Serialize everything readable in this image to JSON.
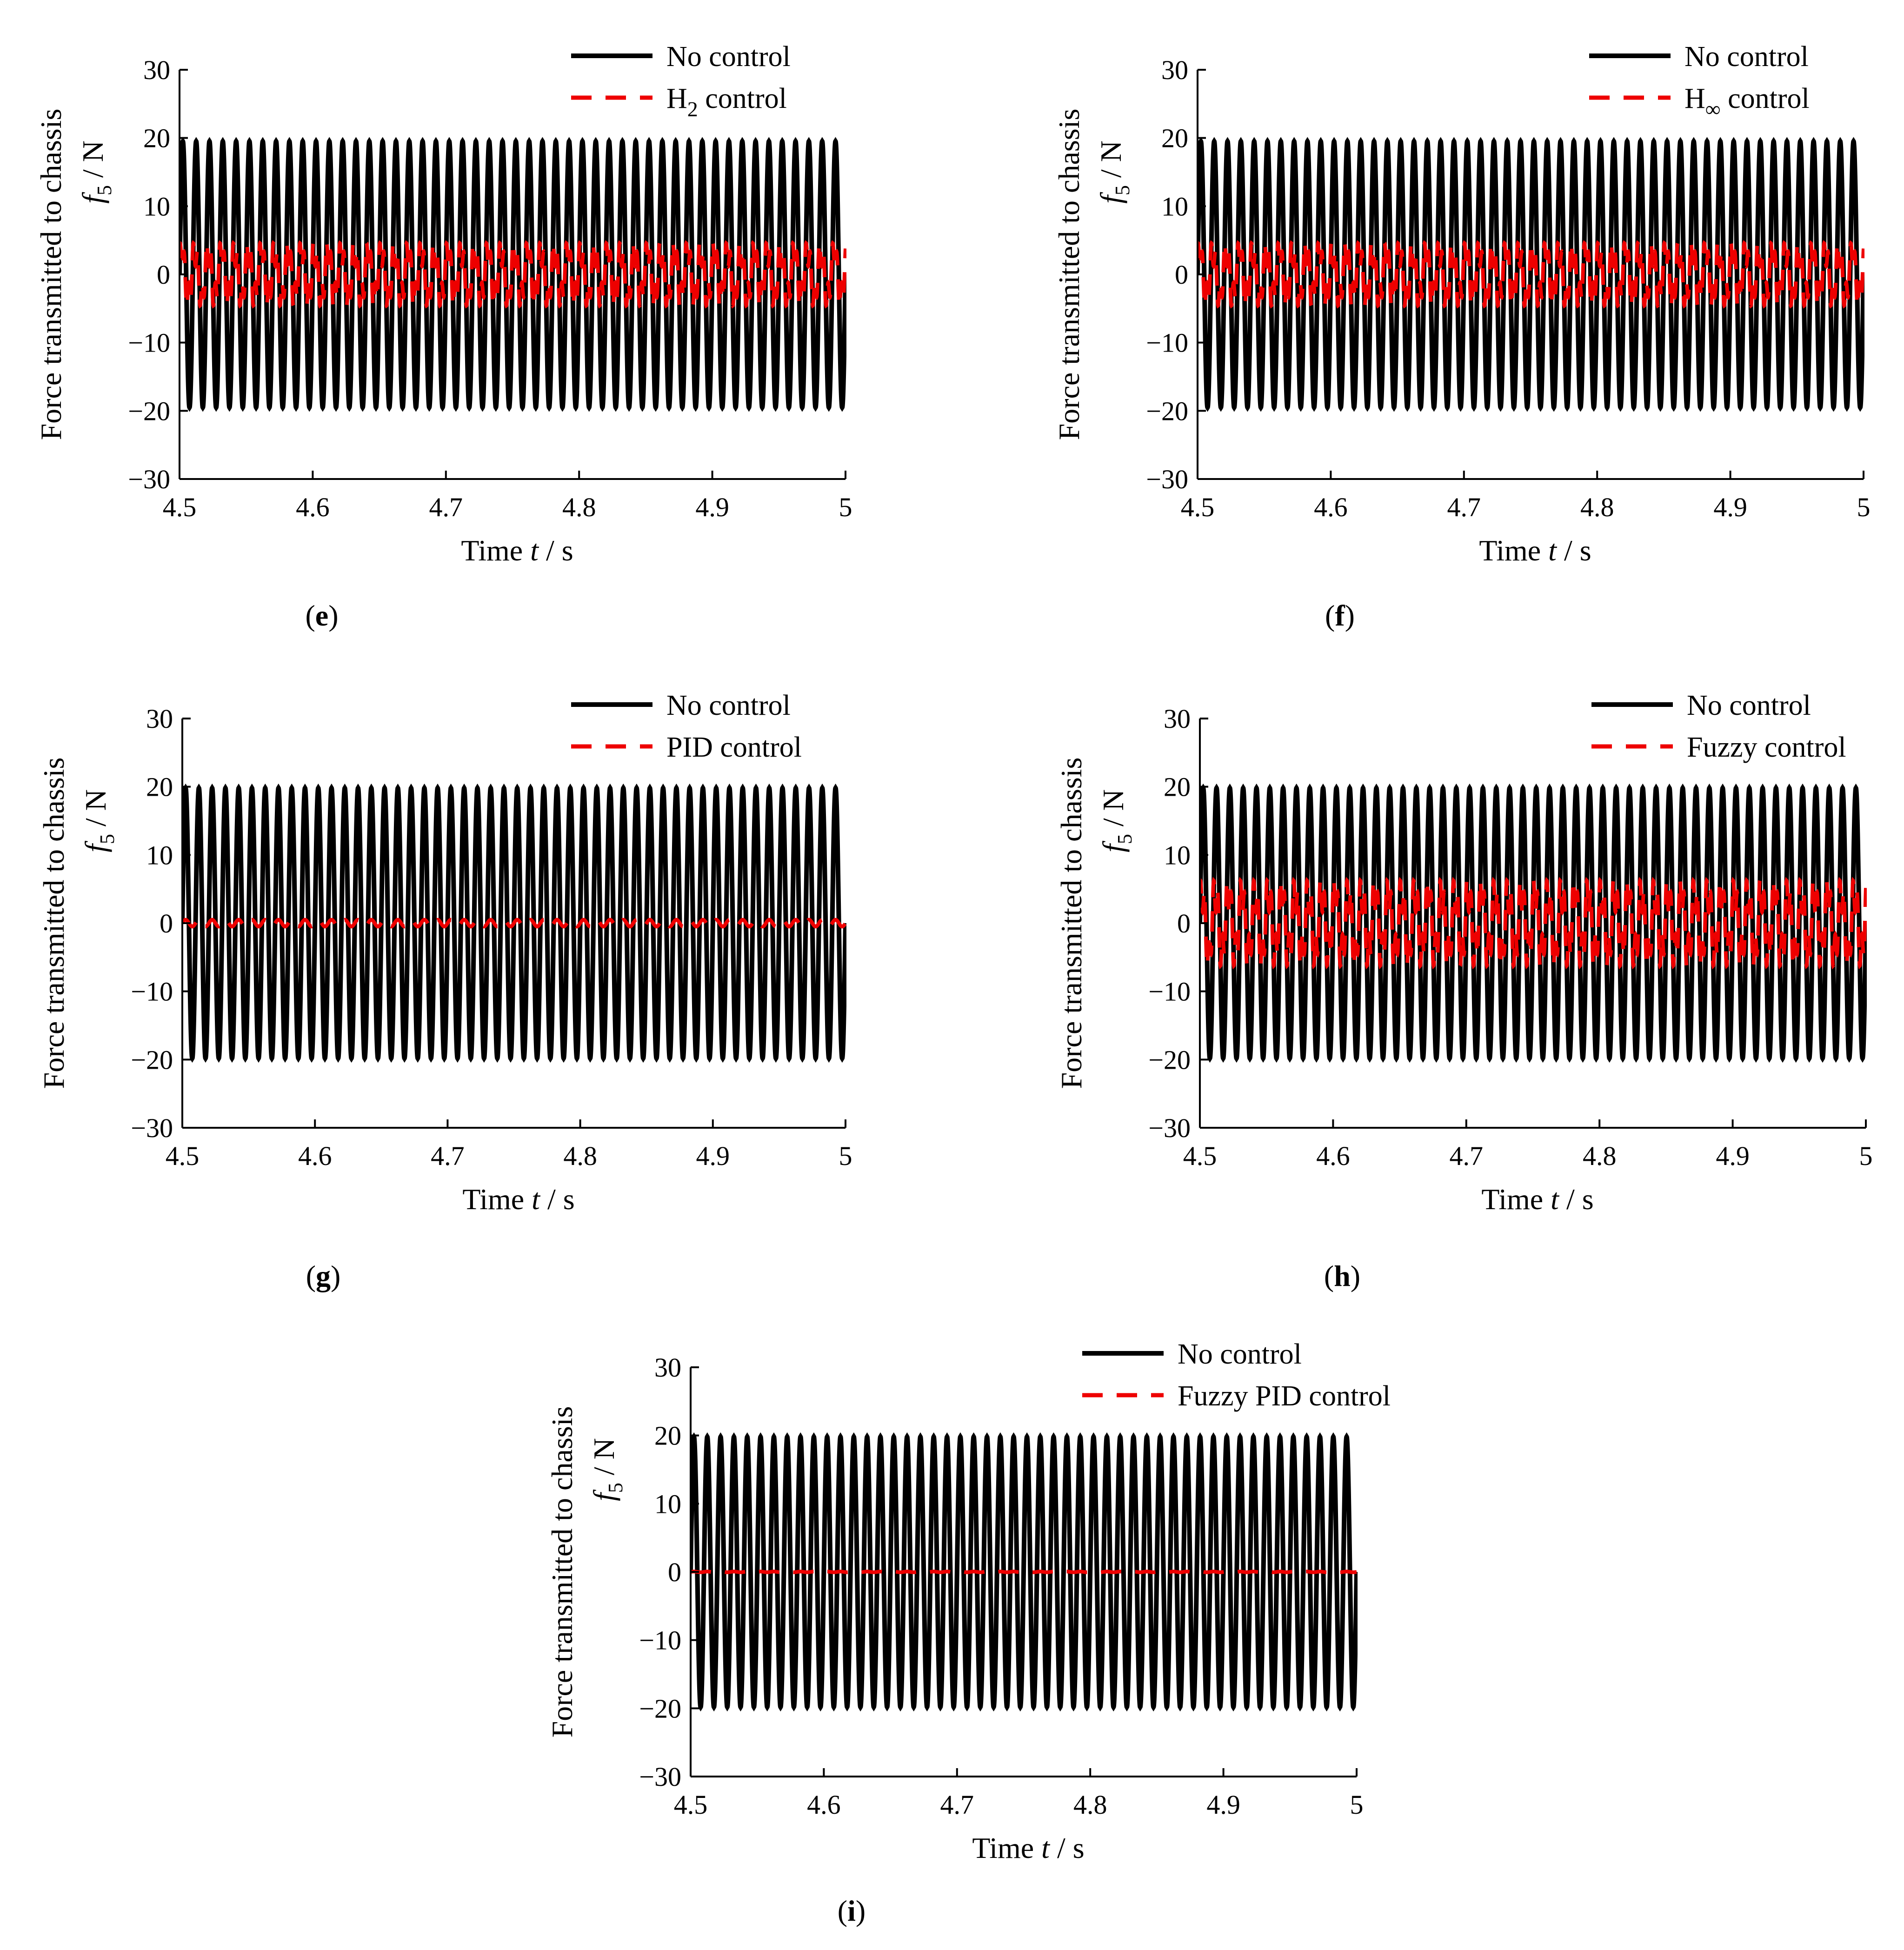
{
  "figure": {
    "panels": [
      "e",
      "f",
      "g",
      "h",
      "i"
    ]
  },
  "chart_data": [
    {
      "panel_label": "(e)",
      "type": "line",
      "title": "",
      "xlabel": {
        "main": "Time",
        "var": "t",
        "unit": " / s"
      },
      "ylabel": {
        "line1": "Force transmitted to chassis",
        "var": "f",
        "sub": "5",
        "unit": " / N"
      },
      "xlim": [
        4.5,
        5.0
      ],
      "ylim": [
        -30,
        30
      ],
      "xticks": [
        "4.5",
        "4.6",
        "4.7",
        "4.8",
        "4.9",
        "5"
      ],
      "yticks": [
        "30",
        "20",
        "10",
        "0",
        "−10",
        "−20",
        "−30"
      ],
      "grid": false,
      "legend_position": "top-right",
      "series": [
        {
          "name": "No control",
          "style": "solid",
          "color": "#000000",
          "amplitude": 19.5,
          "frequency_hz": 100,
          "oscillation_cycles_shown": 50
        },
        {
          "name": "H",
          "name_sub": "2",
          "name_tail": " control",
          "style": "dashed",
          "color": "#ee0000",
          "amplitude": 5.5,
          "frequency_hz": 100,
          "oscillation_cycles_shown": 50,
          "beat_type": "multi"
        }
      ]
    },
    {
      "panel_label": "(f)",
      "type": "line",
      "title": "",
      "xlabel": {
        "main": "Time",
        "var": "t",
        "unit": " / s"
      },
      "ylabel": {
        "line1": "Force transmitted to chassis",
        "var": "f",
        "sub": "5",
        "unit": " / N"
      },
      "xlim": [
        4.5,
        5.0
      ],
      "ylim": [
        -30,
        30
      ],
      "xticks": [
        "4.5",
        "4.6",
        "4.7",
        "4.8",
        "4.9",
        "5"
      ],
      "yticks": [
        "30",
        "20",
        "10",
        "0",
        "−10",
        "−20",
        "−30"
      ],
      "grid": false,
      "legend_position": "top-right",
      "series": [
        {
          "name": "No control",
          "style": "solid",
          "color": "#000000",
          "amplitude": 19.5,
          "frequency_hz": 100,
          "oscillation_cycles_shown": 50
        },
        {
          "name": "H",
          "name_sub": "∞",
          "name_tail": " control",
          "style": "dashed",
          "color": "#ee0000",
          "amplitude": 5.5,
          "frequency_hz": 100,
          "oscillation_cycles_shown": 50,
          "beat_type": "multi"
        }
      ]
    },
    {
      "panel_label": "(g)",
      "type": "line",
      "title": "",
      "xlabel": {
        "main": "Time",
        "var": "t",
        "unit": " / s"
      },
      "ylabel": {
        "line1": "Force transmitted to chassis",
        "var": "f",
        "sub": "5",
        "unit": " / N"
      },
      "xlim": [
        4.5,
        5.0
      ],
      "ylim": [
        -30,
        30
      ],
      "xticks": [
        "4.5",
        "4.6",
        "4.7",
        "4.8",
        "4.9",
        "5"
      ],
      "yticks": [
        "30",
        "20",
        "10",
        "0",
        "−10",
        "−20",
        "−30"
      ],
      "grid": false,
      "legend_position": "top-right",
      "series": [
        {
          "name": "No control",
          "style": "solid",
          "color": "#000000",
          "amplitude": 19.8,
          "frequency_hz": 100,
          "oscillation_cycles_shown": 50
        },
        {
          "name": "PID control",
          "style": "dashed",
          "color": "#ee0000",
          "amplitude": 0.5,
          "frequency_hz": 100,
          "oscillation_cycles_shown": 50,
          "beat_type": "small"
        }
      ]
    },
    {
      "panel_label": "(h)",
      "type": "line",
      "title": "",
      "xlabel": {
        "main": "Time",
        "var": "t",
        "unit": " / s"
      },
      "ylabel": {
        "line1": "Force transmitted to chassis",
        "var": "f",
        "sub": "5",
        "unit": " / N"
      },
      "xlim": [
        4.5,
        5.0
      ],
      "ylim": [
        -30,
        30
      ],
      "xticks": [
        "4.5",
        "4.6",
        "4.7",
        "4.8",
        "4.9",
        "5"
      ],
      "yticks": [
        "30",
        "20",
        "10",
        "0",
        "−10",
        "−20",
        "−30"
      ],
      "grid": false,
      "legend_position": "top-right",
      "series": [
        {
          "name": "No control",
          "style": "solid",
          "color": "#000000",
          "amplitude": 19.8,
          "frequency_hz": 100,
          "oscillation_cycles_shown": 50
        },
        {
          "name": "Fuzzy control",
          "style": "dashed",
          "color": "#ee0000",
          "amplitude": 7.5,
          "frequency_hz": 100,
          "oscillation_cycles_shown": 50,
          "beat_type": "multi"
        }
      ]
    },
    {
      "panel_label": "(i)",
      "type": "line",
      "title": "",
      "xlabel": {
        "main": "Time",
        "var": "t",
        "unit": " / s"
      },
      "ylabel": {
        "line1": "Force transmitted to chassis",
        "var": "f",
        "sub": "5",
        "unit": " / N"
      },
      "xlim": [
        4.5,
        5.0
      ],
      "ylim": [
        -30,
        30
      ],
      "xticks": [
        "4.5",
        "4.6",
        "4.7",
        "4.8",
        "4.9",
        "5"
      ],
      "yticks": [
        "30",
        "20",
        "10",
        "0",
        "−10",
        "−20",
        "−30"
      ],
      "grid": false,
      "legend_position": "top-right",
      "series": [
        {
          "name": "No control",
          "style": "solid",
          "color": "#000000",
          "amplitude": 19.8,
          "frequency_hz": 100,
          "oscillation_cycles_shown": 50
        },
        {
          "name": "Fuzzy PID control",
          "style": "dashed",
          "color": "#ee0000",
          "amplitude": 0.05,
          "frequency_hz": 100,
          "oscillation_cycles_shown": 50,
          "beat_type": "flat"
        }
      ]
    }
  ]
}
